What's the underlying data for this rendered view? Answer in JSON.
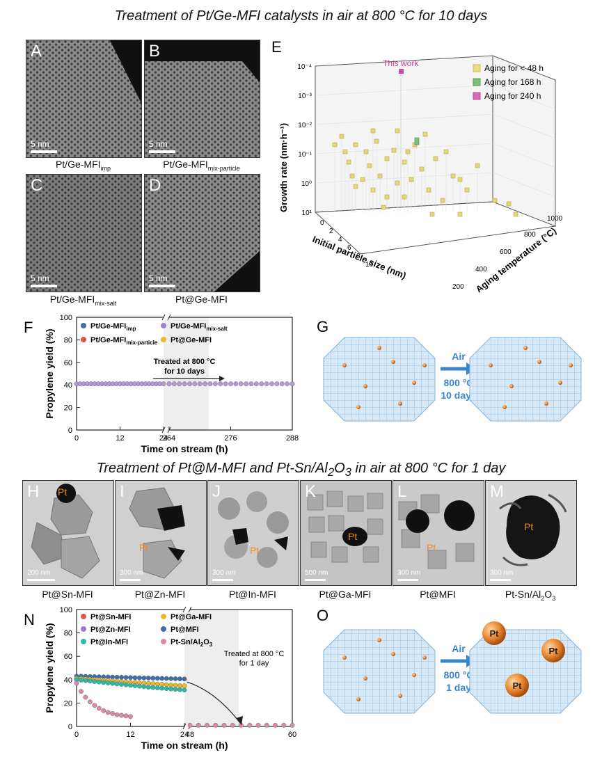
{
  "title_top": "Treatment of Pt/Ge-MFI catalysts in air at 800 °C for 10 days",
  "title_bottom_pre": "Treatment of Pt@M-MFI and Pt-Sn/Al",
  "title_bottom_sub": "2",
  "title_bottom_mid": "O",
  "title_bottom_sub2": "3",
  "title_bottom_post": " in air at 800 °C for 1 day",
  "panels": {
    "A": {
      "letter": "A",
      "scale": "5 nm",
      "caption": "Pt/Ge-MFI",
      "caption_sub": "imp"
    },
    "B": {
      "letter": "B",
      "scale": "5 nm",
      "caption": "Pt/Ge-MFI",
      "caption_sub": "mix-particle"
    },
    "C": {
      "letter": "C",
      "scale": "5 nm",
      "caption": "Pt/Ge-MFI",
      "caption_sub": "mix-salt"
    },
    "D": {
      "letter": "D",
      "scale": "5 nm",
      "caption": "Pt@Ge-MFI",
      "caption_sub": ""
    },
    "E": {
      "letter": "E",
      "zlabel": "Growth rate (nm·h⁻¹)",
      "xlabel": "Initial particle size (nm)",
      "ylabel": "Aging temperature (°C)",
      "this_work": "This work",
      "z_ticks": [
        "10⁻⁴",
        "10⁻³",
        "10⁻²",
        "10⁻¹",
        "10⁰",
        "10¹"
      ],
      "x_ticks": [
        "0",
        "2",
        "4",
        "6",
        "8",
        "10"
      ],
      "y_ticks": [
        "200",
        "400",
        "600",
        "800",
        "1000"
      ],
      "legend": [
        "Aging for < 48 h",
        "Aging for 168 h",
        "Aging for 240 h"
      ]
    },
    "F": {
      "letter": "F"
    },
    "G": {
      "letter": "G",
      "arrow_top": "Air",
      "arrow_mid": "800 °C",
      "arrow_bot": "10 days"
    },
    "H": {
      "letter": "H",
      "scale": "200 nm",
      "caption": "Pt@Sn-MFI",
      "pt": "Pt"
    },
    "I": {
      "letter": "I",
      "scale": "300 nm",
      "caption": "Pt@Zn-MFI",
      "pt": "Pt"
    },
    "J": {
      "letter": "J",
      "scale": "300 nm",
      "caption": "Pt@In-MFI",
      "pt": "Pt"
    },
    "K": {
      "letter": "K",
      "scale": "500 nm",
      "caption": "Pt@Ga-MFI",
      "pt": "Pt"
    },
    "L": {
      "letter": "L",
      "scale": "300 nm",
      "caption": "Pt@MFI",
      "pt": "Pt"
    },
    "M": {
      "letter": "M",
      "scale": "300 nm",
      "caption": "Pt-Sn/Al",
      "caption_sub": "2",
      "caption_mid": "O",
      "caption_sub2": "3",
      "pt": "Pt"
    },
    "N": {
      "letter": "N"
    },
    "O": {
      "letter": "O",
      "arrow_top": "Air",
      "arrow_mid": "800 °C",
      "arrow_bot": "1 day",
      "pt": "Pt"
    }
  },
  "chart_data": [
    {
      "id": "F",
      "type": "scatter",
      "xlabel": "Time on stream (h)",
      "ylabel": "Propylene yield (%)",
      "ylim": [
        0,
        100
      ],
      "y_ticks": [
        "0",
        "20",
        "40",
        "60",
        "80",
        "100"
      ],
      "x_ticks_left": [
        "0",
        "12",
        "24"
      ],
      "x_ticks_right": [
        "264",
        "276",
        "288"
      ],
      "annotation": [
        "Treated at 800 °C",
        "for 10 days"
      ],
      "legend": [
        {
          "name": "Pt/Ge-MFI",
          "sub": "imp",
          "color": "#3f6fa8"
        },
        {
          "name": "Pt/Ge-MFI",
          "sub": "mix-salt",
          "color": "#9b7fd0"
        },
        {
          "name": "Pt/Ge-MFI",
          "sub": "mix-particle",
          "color": "#d9534f"
        },
        {
          "name": "Pt@Ge-MFI",
          "sub": "",
          "color": "#e8b92f"
        }
      ],
      "series_left": {
        "x": [
          0,
          1,
          2,
          3,
          4,
          5,
          6,
          7,
          8,
          9,
          10,
          11,
          12,
          13,
          14,
          15,
          16,
          17,
          18,
          19,
          20,
          21,
          22,
          23,
          24
        ],
        "y": 41
      },
      "series_right": {
        "x": [
          264,
          265,
          266,
          267,
          268,
          269,
          270,
          271,
          272,
          273,
          274,
          275,
          276,
          277,
          278,
          279,
          280,
          281,
          282,
          283,
          284,
          285,
          286,
          287,
          288
        ],
        "y": 41
      }
    },
    {
      "id": "N",
      "type": "scatter",
      "xlabel": "Time on stream (h)",
      "ylabel": "Propylene yield (%)",
      "ylim": [
        0,
        100
      ],
      "y_ticks": [
        "0",
        "20",
        "40",
        "60",
        "80",
        "100"
      ],
      "x_ticks_left": [
        "0",
        "12",
        "24"
      ],
      "x_ticks_right": [
        "48",
        "60"
      ],
      "annotation": [
        "Treated at 800 °C",
        "for 1 day"
      ],
      "legend": [
        {
          "name": "Pt@Sn-MFI",
          "color": "#d9534f"
        },
        {
          "name": "Pt@Ga-MFI",
          "color": "#e8b92f"
        },
        {
          "name": "Pt@Zn-MFI",
          "color": "#9b7fd0"
        },
        {
          "name": "Pt@MFI",
          "color": "#3f6fa8"
        },
        {
          "name": "Pt@In-MFI",
          "color": "#2fb8a8"
        },
        {
          "name": "Pt-Sn/Al",
          "sub": "2",
          "mid": "O",
          "sub2": "3",
          "color": "#d88aa8"
        }
      ],
      "series": [
        {
          "color": "#3f6fa8",
          "x": [
            0,
            1,
            2,
            3,
            4,
            5,
            6,
            7,
            8,
            9,
            10,
            11,
            12,
            13,
            14,
            15,
            16,
            17,
            18,
            19,
            20,
            21,
            22,
            23,
            24
          ],
          "y": [
            43,
            43,
            42.8,
            42.7,
            42.6,
            42.5,
            42.4,
            42.3,
            42.2,
            42.1,
            42,
            41.9,
            41.8,
            41.7,
            41.6,
            41.5,
            41.4,
            41.3,
            41.2,
            41.1,
            41,
            40.9,
            40.8,
            40.7,
            40.6
          ]
        },
        {
          "color": "#e8b92f",
          "x": [
            0,
            1,
            2,
            3,
            4,
            5,
            6,
            7,
            8,
            9,
            10,
            11,
            12,
            13,
            14,
            15,
            16,
            17,
            18,
            19,
            20,
            21,
            22,
            23,
            24
          ],
          "y": [
            41,
            40.8,
            40.6,
            40.3,
            40,
            39.8,
            39.5,
            39.2,
            39,
            38.7,
            38.4,
            38.1,
            37.8,
            37.6,
            37.3,
            37,
            36.8,
            36.5,
            36.2,
            36,
            35.7,
            35.5,
            35.2,
            35,
            34.7
          ]
        },
        {
          "color": "#2fb8a8",
          "x": [
            0,
            1,
            2,
            3,
            4,
            5,
            6,
            7,
            8,
            9,
            10,
            11,
            12,
            13,
            14,
            15,
            16,
            17,
            18,
            19,
            20,
            21,
            22,
            23,
            24
          ],
          "y": [
            40,
            39.6,
            39.2,
            38.8,
            38.4,
            38,
            37.6,
            37.2,
            36.8,
            36.4,
            36,
            35.6,
            35.2,
            34.8,
            34.4,
            34,
            33.6,
            33.3,
            33,
            32.7,
            32.4,
            32.1,
            31.8,
            31.5,
            31.2
          ]
        },
        {
          "color": "#d88aa8",
          "x": [
            0,
            1,
            2,
            3,
            4,
            5,
            6,
            7,
            8,
            9,
            10,
            11,
            12
          ],
          "y": [
            37,
            30,
            25,
            21,
            18,
            15.5,
            13.5,
            12,
            11,
            10,
            9.5,
            9,
            8.5
          ]
        },
        {
          "color": "#d88aa8",
          "x": [
            48,
            49,
            50,
            51,
            52,
            53,
            54,
            55,
            56,
            57,
            58,
            59,
            60
          ],
          "y": [
            1,
            1,
            1,
            1,
            1,
            1,
            1,
            1,
            1,
            1,
            1,
            1,
            1
          ]
        }
      ]
    }
  ]
}
